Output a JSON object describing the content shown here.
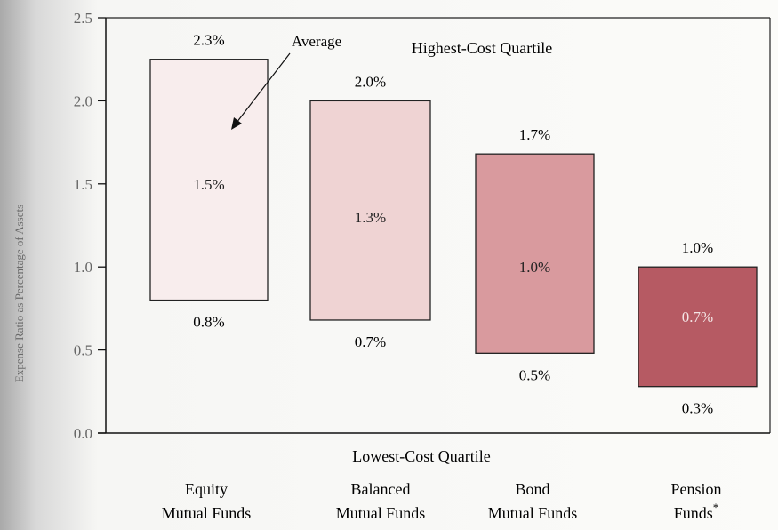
{
  "chart_data": {
    "type": "bar",
    "subtype": "floating-range",
    "ylabel": "Expense Ratio as Percentage of Assets",
    "ylim": [
      0,
      2.5
    ],
    "yticks": [
      "0.0",
      "0.5",
      "1.0",
      "1.5",
      "2.0",
      "2.5"
    ],
    "ytick_values": [
      0,
      0.5,
      1.0,
      1.5,
      2.0,
      2.5
    ],
    "top_annotation": "Highest-Cost Quartile",
    "bottom_annotation": "Lowest-Cost Quartile",
    "average_annotation": "Average",
    "categories": [
      {
        "line1": "Equity",
        "line2": "Mutual Funds",
        "sup": ""
      },
      {
        "line1": "Balanced",
        "line2": "Mutual Funds",
        "sup": ""
      },
      {
        "line1": "Bond",
        "line2": "Mutual Funds",
        "sup": ""
      },
      {
        "line1": "Pension",
        "line2": "Funds",
        "sup": "*"
      }
    ],
    "high": [
      2.25,
      2.0,
      1.68,
      1.0
    ],
    "average": [
      1.5,
      1.3,
      1.0,
      0.7
    ],
    "low": [
      0.8,
      0.68,
      0.48,
      0.28
    ],
    "high_labels": [
      "2.3%",
      "2.0%",
      "1.7%",
      "1.0%"
    ],
    "average_labels": [
      "1.5%",
      "1.3%",
      "1.0%",
      "0.7%"
    ],
    "low_labels": [
      "0.8%",
      "0.7%",
      "0.5%",
      "0.3%"
    ],
    "colors": [
      "#f8eded",
      "#efd3d3",
      "#d99a9e",
      "#b65a63"
    ],
    "avg_label_colors": [
      "#222222",
      "#222222",
      "#222222",
      "#f4e6e6"
    ]
  }
}
